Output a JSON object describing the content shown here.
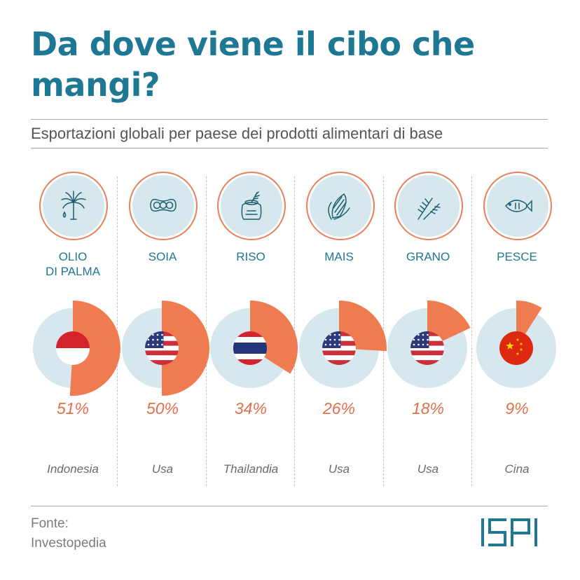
{
  "header": {
    "title": "Da dove viene il cibo che mangi?",
    "subtitle": "Esportazioni globali per paese dei prodotti alimentari di base"
  },
  "colors": {
    "accent": "#1f7893",
    "slice": "#ef7b51",
    "pie_bg": "#d6e7ed",
    "icon_ring": "#ea7f5b"
  },
  "chart_data": {
    "type": "pie",
    "title": "Esportazioni globali per paese dei prodotti alimentari di base",
    "unit": "%",
    "categories": [
      "OLIO\nDI PALMA",
      "SOIA",
      "RISO",
      "MAIS",
      "GRANO",
      "PESCE"
    ],
    "values": [
      51,
      50,
      34,
      26,
      18,
      9
    ],
    "value_labels": [
      "51%",
      "50%",
      "34%",
      "26%",
      "18%",
      "9%"
    ],
    "countries": [
      "Indonesia",
      "Usa",
      "Thailandia",
      "Usa",
      "Usa",
      "Cina"
    ],
    "flags": [
      "indonesia-flag",
      "usa-flag",
      "thailand-flag",
      "usa-flag",
      "usa-flag",
      "china-flag"
    ],
    "icons": [
      "palm-tree-icon",
      "soybean-icon",
      "rice-sack-icon",
      "corn-icon",
      "wheat-icon",
      "fish-icon"
    ]
  },
  "footer": {
    "source": "Fonte:\nInvestopedia",
    "logo": "ISPI"
  }
}
